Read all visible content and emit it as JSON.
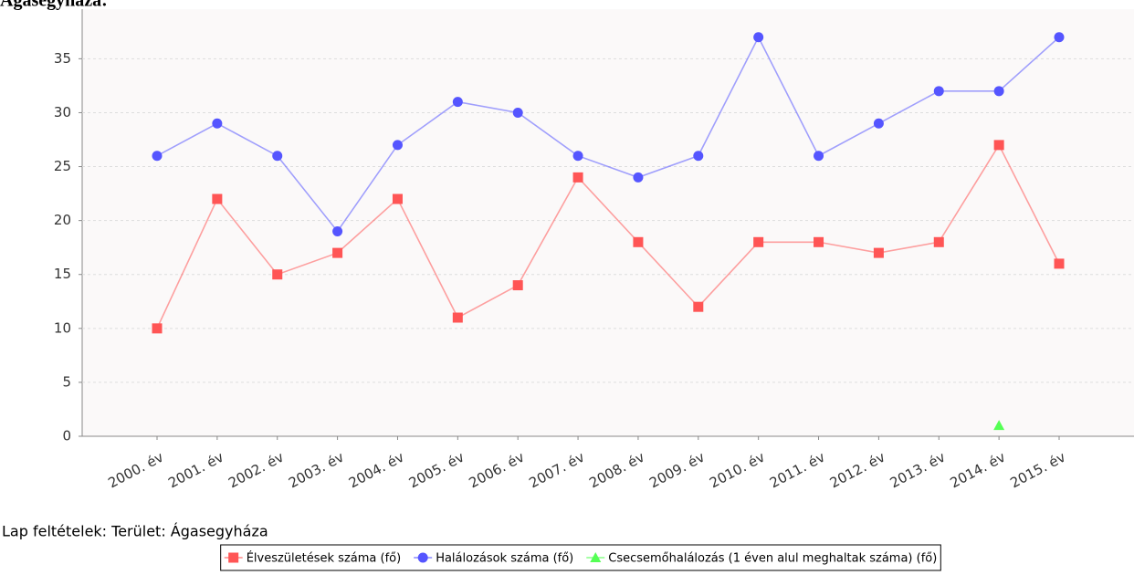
{
  "chart_data": {
    "type": "line",
    "title": "Ágasegyháza:",
    "footer": "Lap feltételek: Terület: Ágasegyháza",
    "categories": [
      "2000. év",
      "2001. év",
      "2002. év",
      "2003. év",
      "2004. év",
      "2005. év",
      "2006. év",
      "2007. év",
      "2008. év",
      "2009. év",
      "2010. év",
      "2011. év",
      "2012. év",
      "2013. év",
      "2014. év",
      "2015. év"
    ],
    "series": [
      {
        "name": "Élveszületések száma (fő)",
        "color": "#ff5555",
        "marker": "square",
        "values": [
          10,
          22,
          15,
          17,
          22,
          11,
          14,
          24,
          18,
          12,
          18,
          18,
          17,
          18,
          27,
          16
        ]
      },
      {
        "name": "Halálozások száma (fő)",
        "color": "#5555ff",
        "marker": "circle",
        "values": [
          26,
          29,
          26,
          19,
          27,
          31,
          30,
          26,
          24,
          26,
          37,
          26,
          29,
          32,
          32,
          37
        ]
      },
      {
        "name": "Csecsemőhalálozás (1 éven alul meghaltak száma) (fő)",
        "color": "#55ff55",
        "marker": "triangle",
        "values": [
          null,
          null,
          null,
          null,
          null,
          null,
          null,
          null,
          null,
          null,
          null,
          null,
          null,
          null,
          1,
          null
        ]
      }
    ],
    "ylim": [
      0,
      39.6
    ],
    "yticks": [
      0,
      5,
      10,
      15,
      20,
      25,
      30,
      35
    ],
    "grid": true
  }
}
